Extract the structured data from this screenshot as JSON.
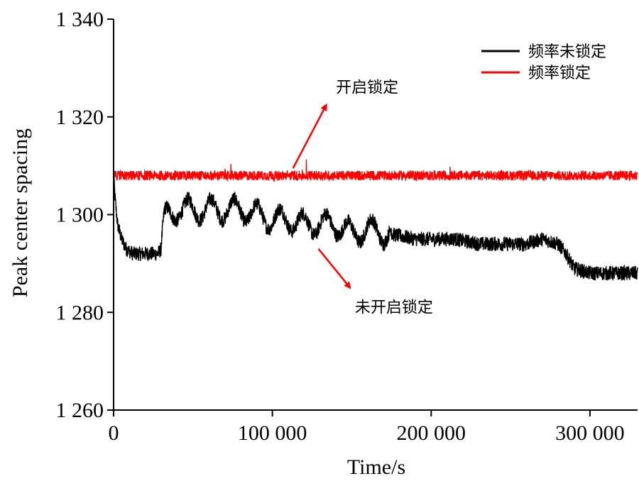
{
  "chart_data": {
    "type": "line",
    "xlabel": "Time/s",
    "ylabel": "Peak center spacing",
    "xlim": [
      0,
      330000
    ],
    "ylim": [
      1260,
      1340
    ],
    "x_ticks": [
      0,
      100000,
      200000,
      300000
    ],
    "x_tick_labels": [
      "0",
      "100 000",
      "200 000",
      "300 000"
    ],
    "y_ticks": [
      1260,
      1280,
      1300,
      1320,
      1340
    ],
    "y_tick_labels": [
      "1 260",
      "1 280",
      "1 300",
      "1 320",
      "1 340"
    ],
    "grid": false,
    "legend_position": "top-right",
    "series": [
      {
        "name": "频率未锁定",
        "color": "#000000",
        "x": [
          0,
          1000,
          2500,
          5000,
          8000,
          12000,
          16000,
          20000,
          24000,
          28000,
          30000,
          32000,
          35000,
          40000,
          50000,
          60000,
          70000,
          80000,
          90000,
          100000,
          110000,
          120000,
          130000,
          140000,
          150000,
          160000,
          175000,
          190000,
          200000,
          215000,
          230000,
          245000,
          260000,
          270000,
          280000,
          285000,
          290000,
          300000,
          315000,
          330000
        ],
        "y": [
          1308,
          1303,
          1298,
          1295,
          1293,
          1292,
          1292,
          1292,
          1292,
          1292,
          1293,
          1299,
          1300,
          1301,
          1301,
          1301,
          1301,
          1301,
          1300,
          1299,
          1299,
          1298,
          1298,
          1298,
          1296,
          1297,
          1296,
          1295,
          1295,
          1295,
          1294,
          1294,
          1294,
          1295,
          1294,
          1292,
          1289,
          1288,
          1288,
          1288
        ],
        "noise": 1.5
      },
      {
        "name": "频率锁定",
        "color": "#ff0000",
        "x": [
          0,
          330000
        ],
        "y": [
          1308,
          1308
        ],
        "noise": 1.0
      }
    ],
    "annotations": [
      {
        "text": "开启锁定",
        "arrow_from": [
          113000,
          1309.5
        ],
        "arrow_to": [
          134000,
          1322.5
        ],
        "text_at": [
          140000,
          1325
        ]
      },
      {
        "text": "未开启锁定",
        "arrow_from": [
          129000,
          1293
        ],
        "arrow_to": [
          149000,
          1285
        ],
        "text_at": [
          152000,
          1280
        ]
      }
    ]
  }
}
